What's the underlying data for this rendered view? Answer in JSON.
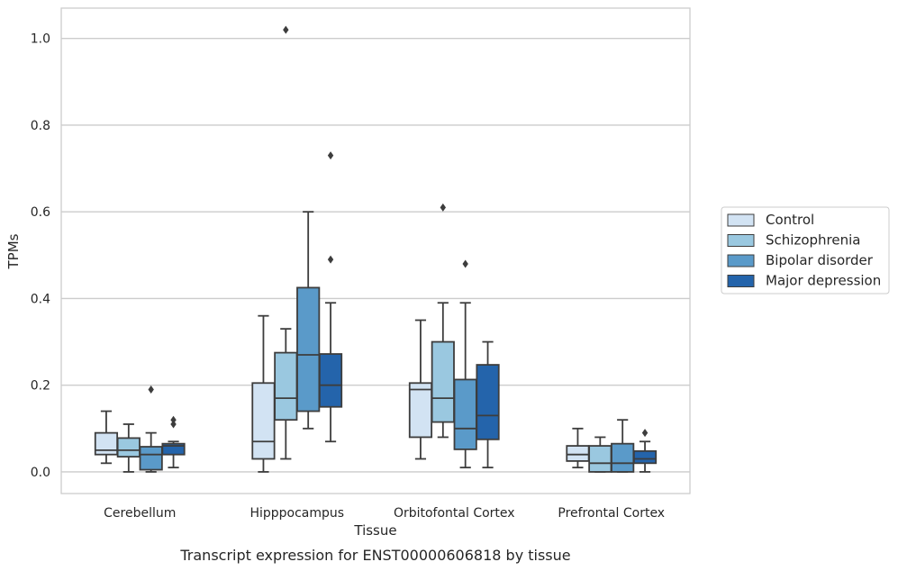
{
  "chart_data": {
    "type": "box",
    "caption": "Transcript expression for ENST00000606818 by tissue",
    "xlabel": "Tissue",
    "ylabel": "TPMs",
    "ylim": [
      -0.05,
      1.07
    ],
    "yticks": [
      0.0,
      0.2,
      0.4,
      0.6,
      0.8,
      1.0
    ],
    "ytick_labels": [
      "0.0",
      "0.2",
      "0.4",
      "0.6",
      "0.8",
      "1.0"
    ],
    "grid": "horizontal",
    "legend_position": "right",
    "categories": [
      "Cerebellum",
      "Hipppocampus",
      "Orbitofontal Cortex",
      "Prefrontal Cortex"
    ],
    "series": [
      {
        "name": "Control",
        "color": "#d2e3f3",
        "boxes": [
          {
            "whislo": 0.02,
            "q1": 0.04,
            "med": 0.05,
            "q3": 0.09,
            "whishi": 0.14,
            "fliers": []
          },
          {
            "whislo": 0.0,
            "q1": 0.03,
            "med": 0.07,
            "q3": 0.205,
            "whishi": 0.36,
            "fliers": []
          },
          {
            "whislo": 0.03,
            "q1": 0.08,
            "med": 0.19,
            "q3": 0.205,
            "whishi": 0.35,
            "fliers": []
          },
          {
            "whislo": 0.01,
            "q1": 0.025,
            "med": 0.04,
            "q3": 0.06,
            "whishi": 0.1,
            "fliers": []
          }
        ]
      },
      {
        "name": "Schizophrenia",
        "color": "#9ac8e0",
        "boxes": [
          {
            "whislo": 0.0,
            "q1": 0.035,
            "med": 0.05,
            "q3": 0.078,
            "whishi": 0.11,
            "fliers": []
          },
          {
            "whislo": 0.03,
            "q1": 0.12,
            "med": 0.17,
            "q3": 0.275,
            "whishi": 0.33,
            "fliers": [
              1.02
            ]
          },
          {
            "whislo": 0.08,
            "q1": 0.115,
            "med": 0.17,
            "q3": 0.3,
            "whishi": 0.39,
            "fliers": [
              0.61
            ]
          },
          {
            "whislo": 0.0,
            "q1": 0.0,
            "med": 0.02,
            "q3": 0.06,
            "whishi": 0.08,
            "fliers": []
          }
        ]
      },
      {
        "name": "Bipolar disorder",
        "color": "#5a9ac9",
        "boxes": [
          {
            "whislo": 0.0,
            "q1": 0.005,
            "med": 0.04,
            "q3": 0.058,
            "whishi": 0.09,
            "fliers": [
              0.19
            ]
          },
          {
            "whislo": 0.1,
            "q1": 0.14,
            "med": 0.27,
            "q3": 0.425,
            "whishi": 0.6,
            "fliers": []
          },
          {
            "whislo": 0.01,
            "q1": 0.052,
            "med": 0.1,
            "q3": 0.213,
            "whishi": 0.39,
            "fliers": [
              0.48
            ]
          },
          {
            "whislo": 0.0,
            "q1": 0.0,
            "med": 0.02,
            "q3": 0.065,
            "whishi": 0.12,
            "fliers": []
          }
        ]
      },
      {
        "name": "Major depression",
        "color": "#2464ab",
        "boxes": [
          {
            "whislo": 0.01,
            "q1": 0.04,
            "med": 0.06,
            "q3": 0.065,
            "whishi": 0.07,
            "fliers": [
              0.11,
              0.12
            ]
          },
          {
            "whislo": 0.07,
            "q1": 0.15,
            "med": 0.2,
            "q3": 0.272,
            "whishi": 0.39,
            "fliers": [
              0.49,
              0.73
            ]
          },
          {
            "whislo": 0.01,
            "q1": 0.075,
            "med": 0.13,
            "q3": 0.247,
            "whishi": 0.3,
            "fliers": []
          },
          {
            "whislo": 0.0,
            "q1": 0.02,
            "med": 0.03,
            "q3": 0.048,
            "whishi": 0.07,
            "fliers": [
              0.09
            ]
          }
        ]
      }
    ]
  }
}
